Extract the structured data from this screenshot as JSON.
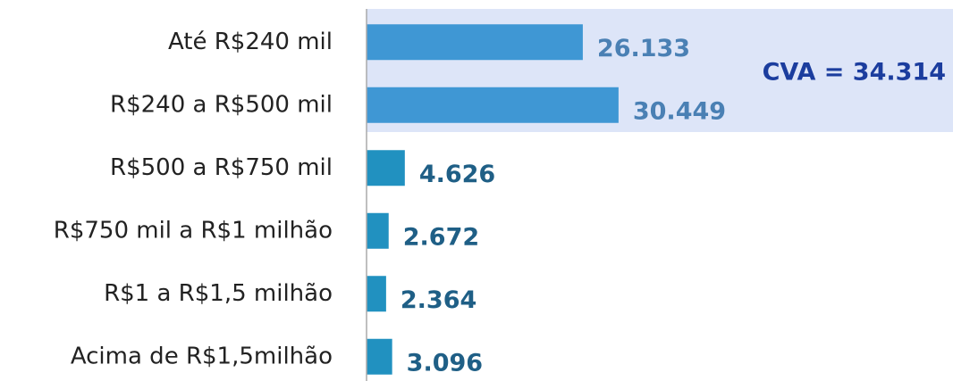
{
  "chart_data": {
    "type": "bar",
    "orientation": "horizontal",
    "categories": [
      "Até R$240 mil",
      "R$240 a R$500 mil",
      "R$500 a R$750 mil",
      "R$750 mil a R$1 milhão",
      "R$1 a R$1,5 milhão",
      "Acima de R$1,5milhão"
    ],
    "values": [
      26133,
      30449,
      4626,
      2672,
      2364,
      3096
    ],
    "value_labels": [
      "26.133",
      "30.449",
      "4.626",
      "2.672",
      "2.364",
      "3.096"
    ],
    "colors": [
      "#3f97d4",
      "#3f97d4",
      "#2191c0",
      "#2191c0",
      "#2191c0",
      "#2191c0"
    ],
    "label_colors": [
      "#4a80b4",
      "#4a80b4",
      "#1f5f86",
      "#1f5f86",
      "#1f5f86",
      "#1f5f86"
    ],
    "xlim": [
      0,
      70000
    ],
    "annotation": "CVA = 34.314"
  }
}
